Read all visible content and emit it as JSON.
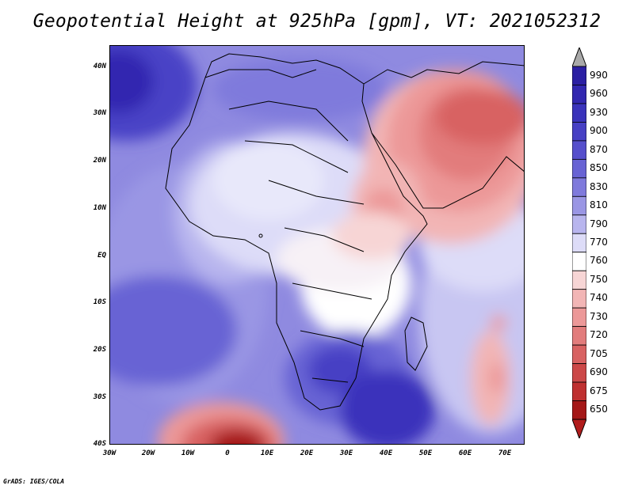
{
  "title": "Geopotential Height at 925hPa [gpm], VT: 2021052312",
  "lat_ticks": [
    "40N",
    "30N",
    "20N",
    "10N",
    "EQ",
    "10S",
    "20S",
    "30S",
    "40S"
  ],
  "lon_ticks": [
    "30W",
    "20W",
    "10W",
    "0",
    "10E",
    "20E",
    "30E",
    "40E",
    "50E",
    "60E",
    "70E"
  ],
  "colorbar": {
    "levels": [
      "990",
      "960",
      "930",
      "900",
      "870",
      "850",
      "830",
      "810",
      "790",
      "770",
      "760",
      "750",
      "740",
      "730",
      "720",
      "705",
      "690",
      "675",
      "650"
    ],
    "colors": [
      "#2b1fa3",
      "#3227b0",
      "#3a33bb",
      "#4740c4",
      "#564fcc",
      "#6863d4",
      "#7f7adc",
      "#9a96e4",
      "#b8b5ee",
      "#dddcf8",
      "#ffffff",
      "#f7d5d5",
      "#f2b5b5",
      "#ec9898",
      "#e27c7c",
      "#d86262",
      "#cc4848",
      "#bf3030",
      "#a51818"
    ],
    "top_arrow_color": "#a9a9a9",
    "bottom_arrow_color": "#b01c1c"
  },
  "credit": "GrADS: IGES/COLA"
}
